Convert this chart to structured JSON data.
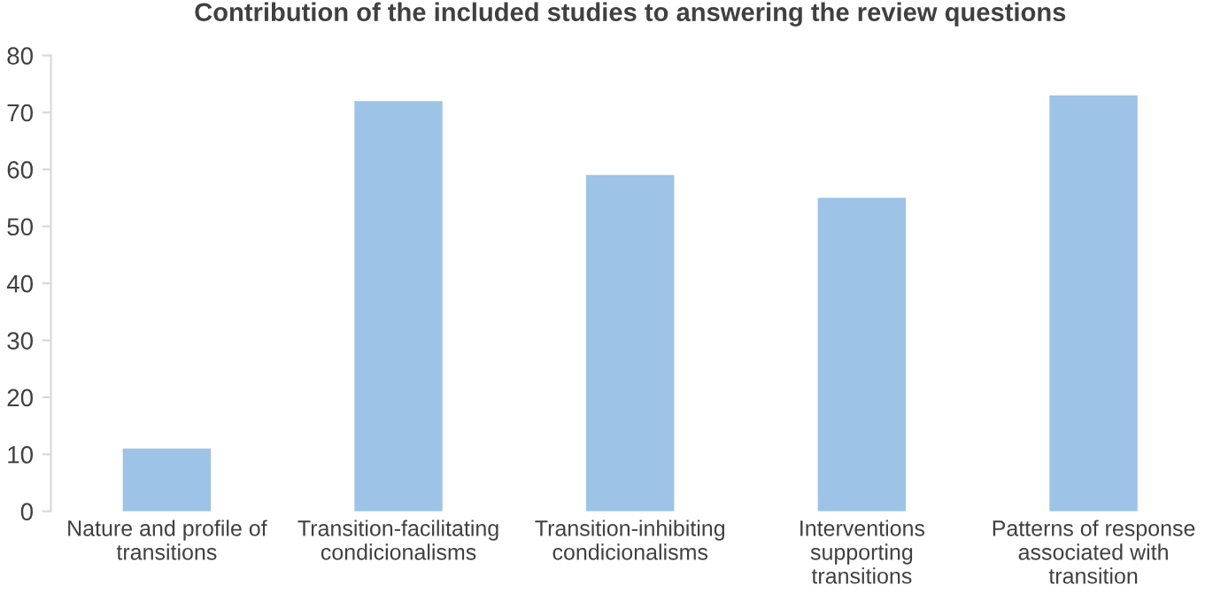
{
  "chart_data": {
    "type": "bar",
    "title": "Contribution of the included studies to answering the review questions",
    "categories": [
      "Nature and profile of transitions",
      "Transition-facilitating condicionalisms",
      "Transition-inhibiting condicionalisms",
      "Interventions supporting transitions",
      "Patterns of response associated with transition"
    ],
    "values": [
      11,
      72,
      59,
      55,
      73
    ],
    "color": "#9dc3e6",
    "ylim": [
      0,
      80
    ],
    "yticks": [
      0,
      10,
      20,
      30,
      40,
      50,
      60,
      70,
      80
    ],
    "grid": false,
    "legend": false
  }
}
